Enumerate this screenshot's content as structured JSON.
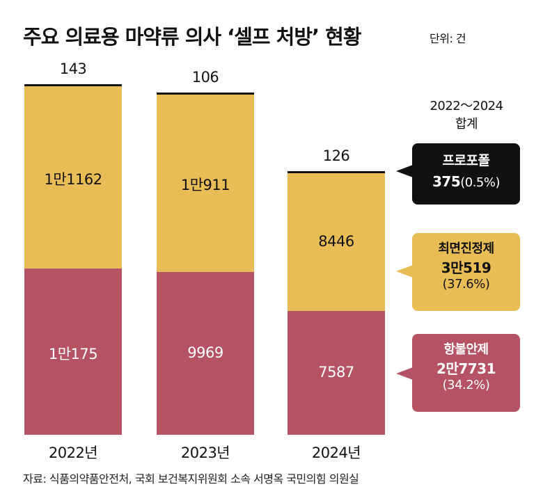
{
  "chart_data": {
    "type": "bar",
    "stacked": true,
    "title": "주요 의료용 마약류 의사 ‘셀프 처방’ 현황",
    "unit_label": "단위: 건",
    "categories": [
      "2022년",
      "2023년",
      "2024년"
    ],
    "series": [
      {
        "name": "항불안제",
        "values": [
          10175,
          9969,
          7587
        ],
        "labels": [
          "1만175",
          "9969",
          "7587"
        ],
        "color": "#B55263"
      },
      {
        "name": "최면진정제",
        "values": [
          11162,
          10911,
          8446
        ],
        "labels": [
          "1만1162",
          "1만911",
          "8446"
        ],
        "color": "#E9BD55"
      },
      {
        "name": "프로포폴",
        "values": [
          143,
          106,
          126
        ],
        "labels": [
          "143",
          "106",
          "126"
        ],
        "color": "#111111"
      }
    ],
    "summary": {
      "heading": "2022～2024",
      "subheading": "합계",
      "items": [
        {
          "name": "프로포폴",
          "total": "375",
          "share": "(0.5%)",
          "color": "#111111"
        },
        {
          "name": "최면진정제",
          "total": "3만519",
          "share": "(37.6%)",
          "color": "#E9BD55"
        },
        {
          "name": "항불안제",
          "total": "2만7731",
          "share": "(34.2%)",
          "color": "#B55263"
        }
      ]
    },
    "source": "자료: 식품의약품안전처, 국회 보건복지위원회 소속 서명옥 국민의힘 의원실",
    "grid": false
  }
}
